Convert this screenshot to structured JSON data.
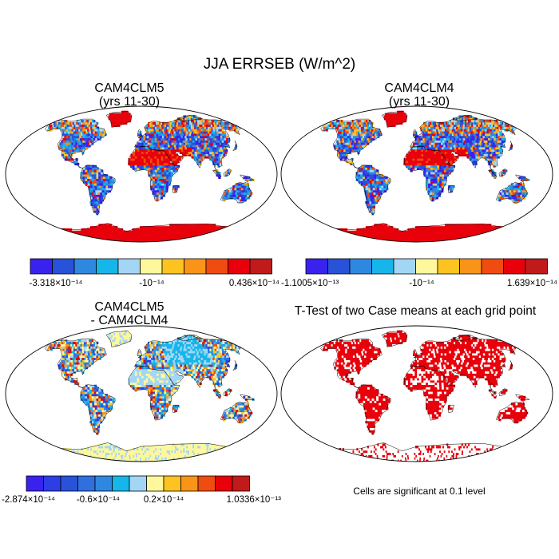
{
  "figure": {
    "title": "JJA ERRSEB (W/m^2)",
    "colors": {
      "background": "#ffffff",
      "map_outline": "#000000",
      "significance": "#e8000b"
    }
  },
  "chart_data": [
    {
      "type": "heatmap",
      "panel": "top-left",
      "title": "CAM4CLM5",
      "subtitle": "(yrs 11-30)",
      "projection": "robinson-world",
      "colorbar": {
        "colors": [
          "#3a22ee",
          "#2852d8",
          "#2f88e0",
          "#16b6ea",
          "#a3d6f5",
          "#fff79c",
          "#fdc421",
          "#f99418",
          "#f04b10",
          "#e8000b",
          "#c01a1a"
        ],
        "labels": [
          "-3.318×10⁻¹⁴",
          "-10⁻¹⁴",
          "0.436×10⁻¹⁴"
        ]
      }
    },
    {
      "type": "heatmap",
      "panel": "top-right",
      "title": "CAM4CLM4",
      "subtitle": "(yrs 11-30)",
      "projection": "robinson-world",
      "colorbar": {
        "colors": [
          "#3a22ee",
          "#2852d8",
          "#2f88e0",
          "#16b6ea",
          "#a3d6f5",
          "#fff79c",
          "#fdc421",
          "#f99418",
          "#f04b10",
          "#e8000b",
          "#c01a1a"
        ],
        "labels": [
          "-1.1005×10⁻¹³",
          "-10⁻¹⁴",
          "1.639×10⁻¹⁴"
        ]
      }
    },
    {
      "type": "heatmap",
      "panel": "bottom-left",
      "title": "CAM4CLM5",
      "subtitle": "- CAM4CLM4",
      "projection": "robinson-world",
      "colorbar": {
        "colors": [
          "#3a22ee",
          "#2d3ee4",
          "#2852d8",
          "#2f70de",
          "#2f88e0",
          "#16b6ea",
          "#a3d6f5",
          "#fff79c",
          "#fdc421",
          "#f99418",
          "#f04b10",
          "#e8000b",
          "#c01a1a"
        ],
        "labels": [
          "-2.874×10⁻¹⁴",
          "-0.6×10⁻¹⁴",
          "0.2×10⁻¹⁴",
          "1.0336×10⁻¹³"
        ]
      }
    },
    {
      "type": "heatmap",
      "panel": "bottom-right",
      "title": "T-Test of two Case means at each grid point",
      "projection": "robinson-world",
      "note": "Cells are significant at 0.1 level"
    }
  ]
}
